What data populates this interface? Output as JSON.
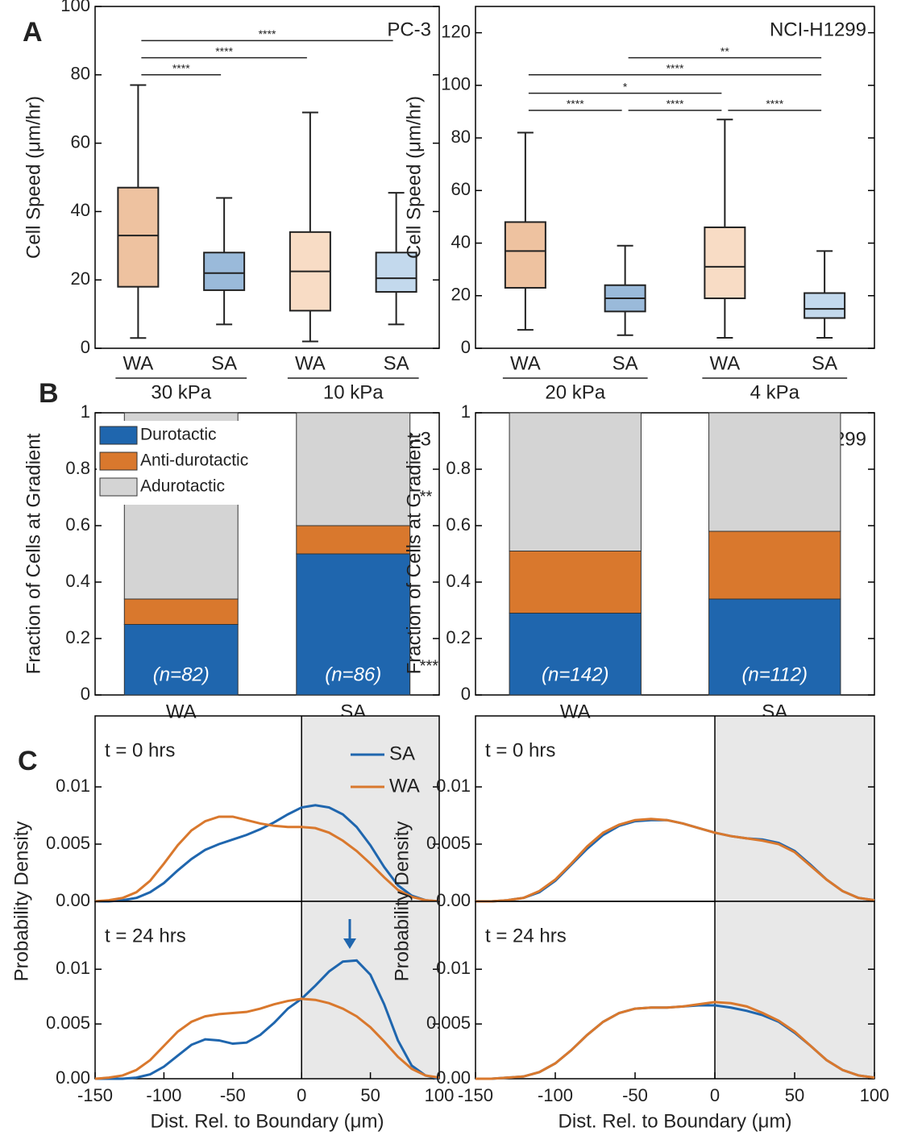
{
  "panel_labels": [
    "A",
    "B",
    "C"
  ],
  "chart_data": [
    {
      "type": "box",
      "title": "PC-3",
      "ylabel": "Cell Speed (μm/hr)",
      "categories": [
        "WA",
        "SA",
        "WA",
        "SA"
      ],
      "groups": [
        "30 kPa",
        "10 kPa"
      ],
      "colors": [
        "#d9782d",
        "#1f66ae",
        "#efb27f",
        "#7aaad8"
      ],
      "boxes": [
        {
          "min": 3,
          "q1": 18,
          "median": 33,
          "q3": 47,
          "max": 77
        },
        {
          "min": 7,
          "q1": 17,
          "median": 22,
          "q3": 28,
          "max": 44
        },
        {
          "min": 2,
          "q1": 11,
          "median": 22.5,
          "q3": 34,
          "max": 69
        },
        {
          "min": 7,
          "q1": 16.5,
          "median": 20.5,
          "q3": 28,
          "max": 45.5
        }
      ],
      "significance": [
        {
          "from": 0,
          "to": 1,
          "y": 80,
          "label": "****"
        },
        {
          "from": 0,
          "to": 2,
          "y": 85,
          "label": "****"
        },
        {
          "from": 0,
          "to": 3,
          "y": 90,
          "label": "****"
        }
      ],
      "ylim": [
        0,
        100
      ],
      "yticks": [
        0,
        20,
        40,
        60,
        80,
        100
      ]
    },
    {
      "type": "box",
      "title": "NCI-H1299",
      "ylabel": "Cell Speed (μm/hr)",
      "categories": [
        "WA",
        "SA",
        "WA",
        "SA"
      ],
      "groups": [
        "20 kPa",
        "4 kPa"
      ],
      "colors": [
        "#d9782d",
        "#1f66ae",
        "#efb27f",
        "#7aaad8"
      ],
      "boxes": [
        {
          "min": 7,
          "q1": 23,
          "median": 37,
          "q3": 48,
          "max": 82
        },
        {
          "min": 5,
          "q1": 14,
          "median": 19,
          "q3": 24,
          "max": 39
        },
        {
          "min": 4,
          "q1": 19,
          "median": 31,
          "q3": 46,
          "max": 87
        },
        {
          "min": 4,
          "q1": 11.5,
          "median": 15,
          "q3": 21,
          "max": 37
        }
      ],
      "significance": [
        {
          "from": 1,
          "to": 3,
          "y": 110.5,
          "label": "**"
        },
        {
          "from": 0,
          "to": 3,
          "y": 104,
          "label": "****"
        },
        {
          "from": 0,
          "to": 2,
          "y": 97,
          "label": "*"
        },
        {
          "from": 0,
          "to": 1,
          "y": 90.5,
          "label": "****"
        },
        {
          "from": 1,
          "to": 2,
          "y": 90.5,
          "label": "****"
        },
        {
          "from": 2,
          "to": 3,
          "y": 90.5,
          "label": "****"
        }
      ],
      "ylim": [
        0,
        130
      ],
      "yticks": [
        0,
        20,
        40,
        60,
        80,
        100,
        120
      ]
    },
    {
      "type": "stacked_bar",
      "title": "PC-3",
      "ylabel": "Fraction of Cells at Gradient",
      "categories": [
        "WA",
        "SA"
      ],
      "n_labels": [
        "(n=82)",
        "(n=86)"
      ],
      "legend": "upper left",
      "series": [
        {
          "name": "Durotactic",
          "color": "#1f66ae",
          "values": [
            0.25,
            0.5
          ],
          "significance": "***"
        },
        {
          "name": "Anti-durotactic",
          "color": "#d9782d",
          "values": [
            0.09,
            0.1
          ]
        },
        {
          "name": "Adurotactic",
          "color": "#d4d4d4",
          "values": [
            0.66,
            0.4
          ],
          "significance": "**"
        }
      ],
      "ylim": [
        0,
        1
      ],
      "yticks": [
        0,
        0.2,
        0.4,
        0.6,
        0.8,
        1
      ]
    },
    {
      "type": "stacked_bar",
      "title": "NCI-H1299",
      "ylabel": "Fraction of Cells at Gradient",
      "categories": [
        "WA",
        "SA"
      ],
      "n_labels": [
        "(n=142)",
        "(n=112)"
      ],
      "series": [
        {
          "color": "#1f66ae",
          "values": [
            0.29,
            0.34
          ]
        },
        {
          "color": "#d9782d",
          "values": [
            0.22,
            0.24
          ]
        },
        {
          "color": "#d4d4d4",
          "values": [
            0.49,
            0.42
          ]
        }
      ],
      "ylim": [
        0,
        1
      ],
      "yticks": [
        0,
        0.2,
        0.4,
        0.6,
        0.8,
        1
      ]
    },
    {
      "type": "line",
      "annotation": "t = 0 hrs",
      "ylabel": "Probability Density",
      "legend": "upper right",
      "shaded_region": [
        0,
        100
      ],
      "x": [
        -150,
        -140,
        -130,
        -120,
        -110,
        -100,
        -90,
        -80,
        -70,
        -60,
        -50,
        -40,
        -30,
        -20,
        -10,
        0,
        10,
        20,
        30,
        40,
        50,
        60,
        70,
        80,
        90,
        100
      ],
      "series": [
        {
          "name": "SA",
          "color": "#1f66ae",
          "values": [
            0,
            0,
            0.0001,
            0.0003,
            0.0008,
            0.0016,
            0.0027,
            0.0037,
            0.0045,
            0.005,
            0.0054,
            0.0058,
            0.0063,
            0.0069,
            0.0076,
            0.0082,
            0.0084,
            0.0082,
            0.0076,
            0.0065,
            0.0049,
            0.003,
            0.0014,
            0.0005,
            0.0001,
            0
          ]
        },
        {
          "name": "WA",
          "color": "#d9782d",
          "values": [
            0,
            0.0001,
            0.0003,
            0.0008,
            0.0018,
            0.0033,
            0.0049,
            0.0062,
            0.007,
            0.0074,
            0.0074,
            0.0071,
            0.0068,
            0.0066,
            0.0065,
            0.0065,
            0.0064,
            0.006,
            0.0053,
            0.0044,
            0.0033,
            0.0021,
            0.001,
            0.0004,
            0.0001,
            0
          ]
        }
      ],
      "xlim": [
        -150,
        100
      ],
      "ylim": [
        0,
        0.0162
      ],
      "yticks": [
        {
          "value": 0,
          "label": "0.00"
        },
        0.005,
        0.01
      ]
    },
    {
      "type": "line",
      "annotation": "t = 24 hrs",
      "xlabel": "Dist. Rel. to Boundary  (μm)",
      "shaded_region": [
        0,
        100
      ],
      "x": [
        -150,
        -140,
        -130,
        -120,
        -110,
        -100,
        -90,
        -80,
        -70,
        -60,
        -50,
        -40,
        -30,
        -20,
        -10,
        0,
        10,
        20,
        30,
        40,
        50,
        60,
        70,
        80,
        90,
        100
      ],
      "series": [
        {
          "color": "#1f66ae",
          "values": [
            0,
            0,
            0,
            0.0001,
            0.0004,
            0.0011,
            0.0021,
            0.0031,
            0.0036,
            0.0035,
            0.0032,
            0.0033,
            0.004,
            0.0051,
            0.0064,
            0.0073,
            0.0085,
            0.0098,
            0.0107,
            0.0108,
            0.0095,
            0.0068,
            0.0035,
            0.0012,
            0.0003,
            0
          ]
        },
        {
          "color": "#d9782d",
          "values": [
            0,
            0.0001,
            0.0003,
            0.0008,
            0.0017,
            0.003,
            0.0043,
            0.0052,
            0.0057,
            0.0059,
            0.006,
            0.0061,
            0.0064,
            0.0068,
            0.0071,
            0.0073,
            0.0072,
            0.0069,
            0.0064,
            0.0057,
            0.0047,
            0.0034,
            0.002,
            0.0009,
            0.0003,
            0.0001
          ]
        }
      ],
      "xlim": [
        -150,
        100
      ],
      "ylim": [
        0,
        0.0162
      ],
      "xticks": [
        -150,
        -100,
        -50,
        0,
        50,
        100
      ],
      "yticks": [
        {
          "value": 0,
          "label": "0.00"
        },
        0.005,
        0.01
      ]
    },
    {
      "type": "line",
      "annotation": "t = 0 hrs",
      "ylabel": "Probability Density",
      "shaded_region": [
        0,
        100
      ],
      "x": [
        -150,
        -140,
        -130,
        -120,
        -110,
        -100,
        -90,
        -80,
        -70,
        -60,
        -50,
        -40,
        -30,
        -20,
        -10,
        0,
        10,
        20,
        30,
        40,
        50,
        60,
        70,
        80,
        90,
        100
      ],
      "series": [
        {
          "color": "#1f66ae",
          "values": [
            0,
            0,
            0.0001,
            0.0003,
            0.0008,
            0.0018,
            0.0032,
            0.0046,
            0.0058,
            0.0066,
            0.007,
            0.0071,
            0.0071,
            0.0068,
            0.0064,
            0.006,
            0.0057,
            0.0055,
            0.0054,
            0.0051,
            0.0044,
            0.0032,
            0.0019,
            0.0009,
            0.0003,
            0.0001
          ]
        },
        {
          "color": "#d9782d",
          "values": [
            0,
            0,
            0.0001,
            0.0003,
            0.0009,
            0.0019,
            0.0033,
            0.0048,
            0.006,
            0.0067,
            0.0071,
            0.0072,
            0.0071,
            0.0068,
            0.0064,
            0.006,
            0.0057,
            0.0055,
            0.0053,
            0.005,
            0.0043,
            0.0031,
            0.0019,
            0.0009,
            0.0003,
            0.0001
          ]
        }
      ],
      "xlim": [
        -150,
        100
      ],
      "ylim": [
        0,
        0.0162
      ],
      "yticks": [
        {
          "value": 0,
          "label": "0.00"
        },
        0.005,
        0.01
      ]
    },
    {
      "type": "line",
      "annotation": "t = 24 hrs",
      "xlabel": "Dist. Rel. to Boundary  (μm)",
      "shaded_region": [
        0,
        100
      ],
      "x": [
        -150,
        -140,
        -130,
        -120,
        -110,
        -100,
        -90,
        -80,
        -70,
        -60,
        -50,
        -40,
        -30,
        -20,
        -10,
        0,
        10,
        20,
        30,
        40,
        50,
        60,
        70,
        80,
        90,
        100
      ],
      "series": [
        {
          "color": "#1f66ae",
          "values": [
            0,
            0,
            0.0001,
            0.0002,
            0.0006,
            0.0014,
            0.0026,
            0.004,
            0.0052,
            0.006,
            0.0064,
            0.0065,
            0.0065,
            0.0066,
            0.0067,
            0.0067,
            0.0065,
            0.0062,
            0.0058,
            0.0052,
            0.0042,
            0.003,
            0.0017,
            0.0008,
            0.0003,
            0.0001
          ]
        },
        {
          "color": "#d9782d",
          "values": [
            0,
            0,
            0.0001,
            0.0002,
            0.0006,
            0.0014,
            0.0026,
            0.004,
            0.0052,
            0.006,
            0.0064,
            0.0065,
            0.0065,
            0.0066,
            0.0068,
            0.007,
            0.0069,
            0.0066,
            0.006,
            0.0053,
            0.0043,
            0.003,
            0.0017,
            0.0008,
            0.0003,
            0.0001
          ]
        }
      ],
      "xlim": [
        -150,
        100
      ],
      "ylim": [
        0,
        0.0162
      ],
      "xticks": [
        -150,
        -100,
        -50,
        0,
        50,
        100
      ],
      "yticks": [
        {
          "value": 0,
          "label": "0.00"
        },
        0.005,
        0.01
      ]
    }
  ]
}
